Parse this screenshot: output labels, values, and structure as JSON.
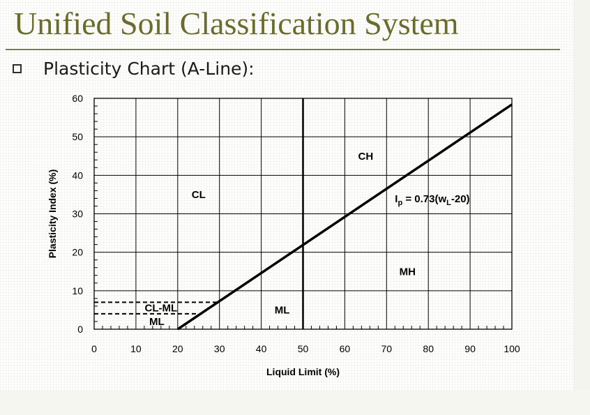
{
  "colors": {
    "title": "#6b6b2e",
    "rule": "#7a7a52",
    "ink": "#000000"
  },
  "slide": {
    "title": "Unified Soil Classification System",
    "bullet_icon": "square-bullet-icon",
    "bullet_text": "Plasticity Chart (A-Line):"
  },
  "chart_data": {
    "type": "line",
    "title": "",
    "xlabel": "Liquid Limit (%)",
    "ylabel": "Plasticity Index (%)",
    "xlim": [
      0,
      100
    ],
    "ylim": [
      0,
      60
    ],
    "x_ticks": [
      0,
      10,
      20,
      30,
      40,
      50,
      60,
      70,
      80,
      90,
      100
    ],
    "y_ticks": [
      0,
      10,
      20,
      30,
      40,
      50,
      60
    ],
    "grid": true,
    "series": [
      {
        "x": [
          20,
          100
        ],
        "y": [
          0,
          58.4
        ]
      }
    ],
    "reference_lines": [
      {
        "orientation": "vertical",
        "x": 50,
        "y": [
          0,
          60
        ]
      },
      {
        "orientation": "horizontal",
        "style": "dashed",
        "y": 7,
        "x": [
          0,
          30
        ]
      },
      {
        "orientation": "horizontal",
        "style": "dashed",
        "y": 4,
        "x": [
          0,
          25
        ]
      }
    ],
    "zone_labels": [
      {
        "text": "CH",
        "x": 65,
        "y": 45
      },
      {
        "text": "CL",
        "x": 25,
        "y": 35
      },
      {
        "text": "MH",
        "x": 75,
        "y": 15
      },
      {
        "text": "ML",
        "x": 45,
        "y": 5
      },
      {
        "text": "CL-ML",
        "x": 16,
        "y": 5.5
      },
      {
        "text": "ML",
        "x": 15,
        "y": 2
      }
    ],
    "equation": {
      "prefix": "I",
      "sub1": "p",
      "mid": " = 0.73(w",
      "sub2": "L",
      "suffix": "-20)",
      "x": 72,
      "y": 33
    }
  }
}
